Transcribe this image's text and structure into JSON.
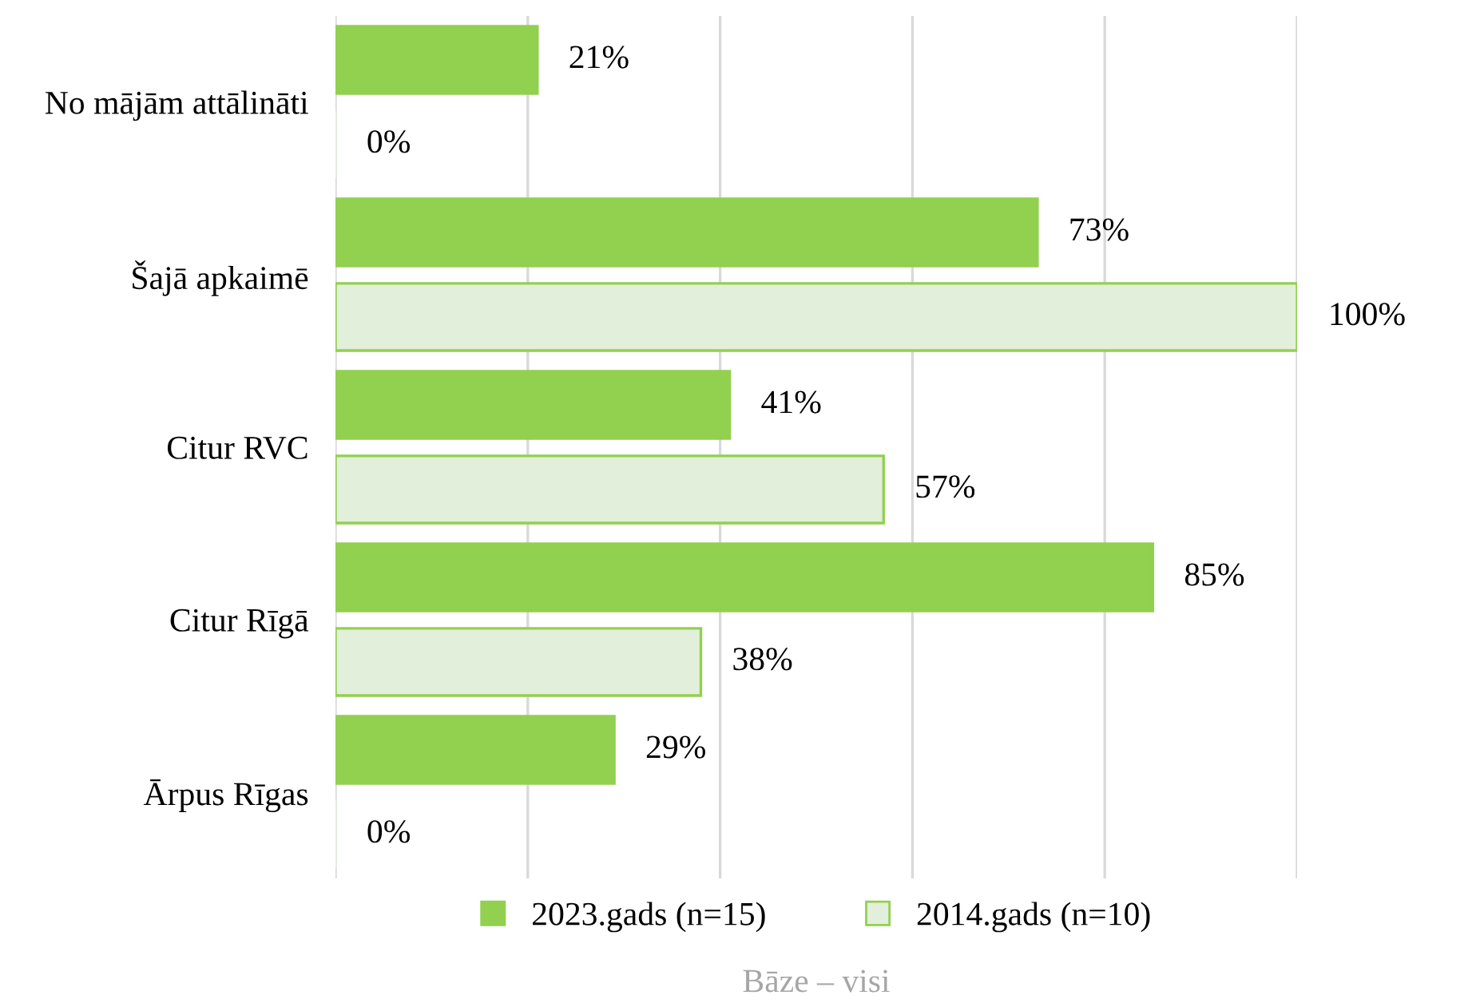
{
  "chart_data": {
    "type": "bar",
    "orientation": "horizontal",
    "categories": [
      "No mājām attālināti",
      "Šajā apkaimē",
      "Citur RVC",
      "Citur Rīgā",
      "Ārpus Rīgas"
    ],
    "series": [
      {
        "name": "2023.gads (n=15)",
        "color": "#92d050",
        "values": [
          21,
          73,
          41,
          85,
          29
        ],
        "value_labels": [
          "21%",
          "73%",
          "41%",
          "85%",
          "29%"
        ]
      },
      {
        "name": "2014.gads (n=10)",
        "color": "#e2efda",
        "values": [
          0,
          100,
          57,
          38,
          0
        ],
        "value_labels": [
          "0%",
          "100%",
          "57%",
          "38%",
          "0%"
        ]
      }
    ],
    "tick_labels": "y",
    "grid": "x",
    "legend": "bottom",
    "annotations": [
      "Bāze – visi"
    ]
  }
}
